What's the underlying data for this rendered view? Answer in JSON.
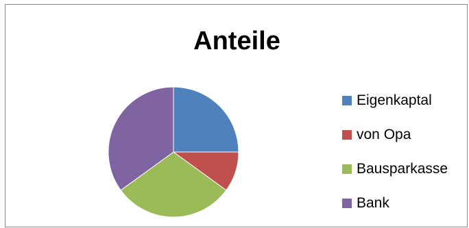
{
  "chart_data": {
    "type": "pie",
    "title": "Anteile",
    "categories": [
      "Eigenkaptal",
      "von Opa",
      "Bausparkasse",
      "Bank"
    ],
    "values": [
      25,
      10,
      30,
      35
    ],
    "colors": [
      "#4f81bd",
      "#c0504d",
      "#9bbb59",
      "#8064a2"
    ],
    "legend_position": "right",
    "start_angle_deg": 0,
    "direction": "clockwise"
  }
}
